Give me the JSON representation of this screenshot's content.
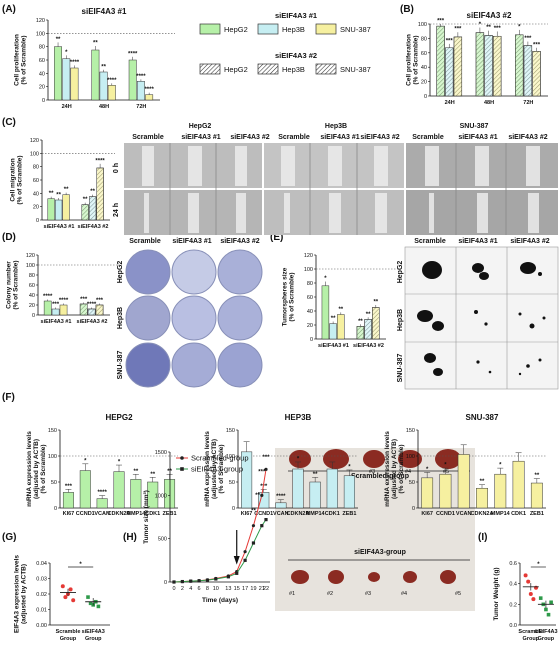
{
  "colors": {
    "hepg2": "#b6f0a8",
    "hep3b": "#c6eef2",
    "snu387": "#f6f0a0",
    "red": "#e53935",
    "green": "#2e9a4a",
    "dark": "#2b2b2b"
  },
  "panels": {
    "A": "(A)",
    "B": "(B)",
    "C": "(C)",
    "D": "(D)",
    "E": "(E)",
    "F": "(F)",
    "G": "(G)",
    "H": "(H)",
    "I": "(I)"
  },
  "legend": {
    "group1": "siEIF4A3 #1",
    "group2": "siEIF4A3 #2",
    "items": [
      "HepG2",
      "Hep3B",
      "SNU-387"
    ]
  },
  "images": {
    "C": {
      "lines": [
        "HepG2",
        "Hep3B",
        "SNU-387"
      ],
      "conditions": [
        "Scramble",
        "siEIF4A3 #1",
        "siEIF4A3 #2"
      ],
      "rows": [
        "0 h",
        "24 h"
      ]
    },
    "D": {
      "conditions": [
        "Scramble",
        "siEIF4A3 #1",
        "siEIF4A3 #2"
      ],
      "rows": [
        "HepG2",
        "Hep3B",
        "SNU-387"
      ]
    },
    "E": {
      "conditions": [
        "Scramble",
        "siEIF4A3 #1",
        "siEIF4A3 #2"
      ],
      "rows": [
        "HepG2",
        "Hep3B",
        "SNU-387"
      ]
    },
    "H": {
      "top_label": "Scrambled-group",
      "bottom_label": "siEIF4A3-group",
      "tumor_ids": [
        "#1",
        "#2",
        "#3",
        "#4",
        "#5"
      ]
    }
  },
  "chart_data": [
    {
      "id": "A",
      "type": "bar",
      "title": "siEIF4A3 #1",
      "ylabel": "Cell proliferation\n(% of Scramble)",
      "ylim": [
        0,
        120
      ],
      "yticks": [
        0,
        20,
        40,
        60,
        80,
        100,
        120
      ],
      "categories": [
        "24H",
        "48H",
        "72H"
      ],
      "series": [
        {
          "name": "HepG2",
          "values": [
            80,
            75,
            60
          ],
          "sig": [
            "**",
            "**",
            "****"
          ]
        },
        {
          "name": "Hep3B",
          "values": [
            62,
            42,
            28
          ],
          "sig": [
            "*",
            "**",
            "****"
          ]
        },
        {
          "name": "SNU-387",
          "values": [
            48,
            22,
            8
          ],
          "sig": [
            "****",
            "****",
            "****"
          ]
        }
      ]
    },
    {
      "id": "B",
      "type": "bar",
      "title": "siEIF4A3 #2",
      "ylabel": "Cell proliferation\n(% of Scramble)",
      "ylim": [
        0,
        100
      ],
      "yticks": [
        0,
        20,
        40,
        60,
        80,
        100
      ],
      "categories": [
        "24H",
        "48H",
        "72H"
      ],
      "series": [
        {
          "name": "HepG2",
          "values": [
            97,
            88,
            85
          ],
          "sig": [
            "***",
            "*",
            "*"
          ]
        },
        {
          "name": "Hep3B",
          "values": [
            67,
            84,
            70
          ],
          "sig": [
            "***",
            "**",
            "***"
          ]
        },
        {
          "name": "SNU-387",
          "values": [
            82,
            83,
            62
          ],
          "sig": [
            "***",
            "***",
            "***"
          ]
        }
      ]
    },
    {
      "id": "C",
      "type": "bar",
      "ylabel": "Cell migration\n(% of Scramble)",
      "ylim": [
        0,
        120
      ],
      "yticks": [
        0,
        20,
        40,
        60,
        80,
        100,
        120
      ],
      "categories": [
        "siEIF4A3 #1",
        "siEIF4A3 #2"
      ],
      "series": [
        {
          "name": "HepG2",
          "values": [
            32,
            23
          ],
          "sig": [
            "**",
            "**"
          ]
        },
        {
          "name": "Hep3B",
          "values": [
            30,
            35
          ],
          "sig": [
            "**",
            "**"
          ]
        },
        {
          "name": "SNU-387",
          "values": [
            38,
            78
          ],
          "sig": [
            "**",
            "****"
          ]
        }
      ]
    },
    {
      "id": "D",
      "type": "bar",
      "ylabel": "Colony number\n(% of Scramble)",
      "ylim": [
        0,
        120
      ],
      "yticks": [
        0,
        20,
        40,
        60,
        80,
        100,
        120
      ],
      "categories": [
        "siEIF4A3 #1",
        "siEIF4A3 #2"
      ],
      "series": [
        {
          "name": "HepG2",
          "values": [
            28,
            22
          ],
          "sig": [
            "****",
            "***"
          ]
        },
        {
          "name": "Hep3B",
          "values": [
            12,
            12
          ],
          "sig": [
            "***",
            "****"
          ]
        },
        {
          "name": "SNU-387",
          "values": [
            20,
            20
          ],
          "sig": [
            "****",
            "***"
          ]
        }
      ]
    },
    {
      "id": "E",
      "type": "bar",
      "ylabel": "Tumorspheres size\n(% of Scramble)",
      "ylim": [
        0,
        120
      ],
      "yticks": [
        0,
        20,
        40,
        60,
        80,
        100,
        120
      ],
      "categories": [
        "siEIF4A3 #1",
        "siEIF4A3 #2"
      ],
      "series": [
        {
          "name": "HepG2",
          "values": [
            76,
            18
          ],
          "sig": [
            "*",
            "**"
          ]
        },
        {
          "name": "Hep3B",
          "values": [
            22,
            28
          ],
          "sig": [
            "**",
            "**"
          ]
        },
        {
          "name": "SNU-387",
          "values": [
            35,
            45
          ],
          "sig": [
            "**",
            "**"
          ]
        }
      ]
    },
    {
      "id": "F1",
      "type": "bar",
      "title": "HEPG2",
      "ylabel": "mRNA expression levels\n(adjusted by ACTB)\n(% of Scramble)",
      "ylim": [
        0,
        150
      ],
      "yticks": [
        0,
        50,
        100,
        150
      ],
      "categories": [
        "KI67",
        "CCND1",
        "VCAN",
        "CDKN2A",
        "MMP14",
        "CDK1",
        "ZEB1"
      ],
      "color": "#b6f0a8",
      "values": [
        30,
        72,
        18,
        70,
        55,
        50,
        55
      ],
      "sig": [
        "***",
        "*",
        "****",
        "*",
        "**",
        "**",
        "**"
      ]
    },
    {
      "id": "F2",
      "type": "bar",
      "title": "HEP3B",
      "ylabel": "mRNA expression levels\n(adjusted by ACTB)\n(% of Scramble)",
      "ylim": [
        0,
        150
      ],
      "yticks": [
        0,
        50,
        100,
        150
      ],
      "categories": [
        "KI67",
        "CCND1",
        "VCAN",
        "CDKN2A",
        "MMP14",
        "CDK1",
        "ZEB1"
      ],
      "color": "#c6eef2",
      "values": [
        108,
        30,
        10,
        75,
        50,
        75,
        62
      ],
      "sig": [
        "",
        "***",
        "****",
        "*",
        "**",
        "",
        "*"
      ]
    },
    {
      "id": "F3",
      "type": "bar",
      "title": "SNU-387",
      "ylabel": "mRNA expression levels\n(adjusted by ACTB)\n(% of Scramble)",
      "ylim": [
        0,
        150
      ],
      "yticks": [
        0,
        50,
        100,
        150
      ],
      "categories": [
        "KI67",
        "CCND1",
        "VCAN",
        "CDKN2A",
        "MMP14",
        "CDK1",
        "ZEB1"
      ],
      "color": "#f6f0a0",
      "values": [
        58,
        65,
        103,
        38,
        65,
        90,
        48
      ],
      "sig": [
        "*",
        "*",
        "",
        "**",
        "*",
        "",
        "**"
      ]
    },
    {
      "id": "G",
      "type": "scatter",
      "ylabel": "EIF4A3 expression levels\n(adjusted by ACTB)",
      "ylim": [
        0,
        0.04
      ],
      "yticks": [
        "0.00",
        "0.01",
        "0.02",
        "0.03",
        "0.04"
      ],
      "categories": [
        "Scramble\nGroup",
        "siEIF4A3\nGroup"
      ],
      "points": [
        [
          0.025,
          0.018,
          0.02,
          0.023,
          0.016
        ],
        [
          0.018,
          0.014,
          0.013,
          0.015,
          0.012
        ]
      ],
      "means": [
        0.021,
        0.015
      ],
      "sig": "*"
    },
    {
      "id": "H",
      "type": "line",
      "xlabel": "Time (days)",
      "ylabel": "Tumor size (mm³)",
      "ylim": [
        0,
        1500
      ],
      "yticks": [
        0,
        500,
        1000,
        1500
      ],
      "xticks": [
        0,
        2,
        4,
        6,
        8,
        10,
        13,
        15,
        17,
        19,
        21,
        22
      ],
      "series": [
        {
          "name": "Scrambled-group",
          "color": "#e53935",
          "values": [
            0,
            5,
            10,
            15,
            25,
            40,
            70,
            120,
            350,
            650,
            1000,
            1300
          ]
        },
        {
          "name": "siEIF4A3-group",
          "color": "#2e9a4a",
          "values": [
            0,
            5,
            10,
            14,
            22,
            35,
            60,
            100,
            250,
            450,
            650,
            720
          ]
        }
      ],
      "sig_labels": [
        "**",
        "**",
        "***",
        "***"
      ]
    },
    {
      "id": "I",
      "type": "scatter",
      "ylabel": "Tumor Weight (g)",
      "ylim": [
        0,
        0.6
      ],
      "yticks": [
        "0.0",
        "0.2",
        "0.4",
        "0.6"
      ],
      "categories": [
        "Scramble\nGroup",
        "siEIF4A3\nGroup"
      ],
      "points": [
        [
          0.48,
          0.42,
          0.3,
          0.25,
          0.36
        ],
        [
          0.26,
          0.2,
          0.15,
          0.1,
          0.22
        ]
      ],
      "means": [
        0.37,
        0.2
      ],
      "sig": "*"
    }
  ]
}
